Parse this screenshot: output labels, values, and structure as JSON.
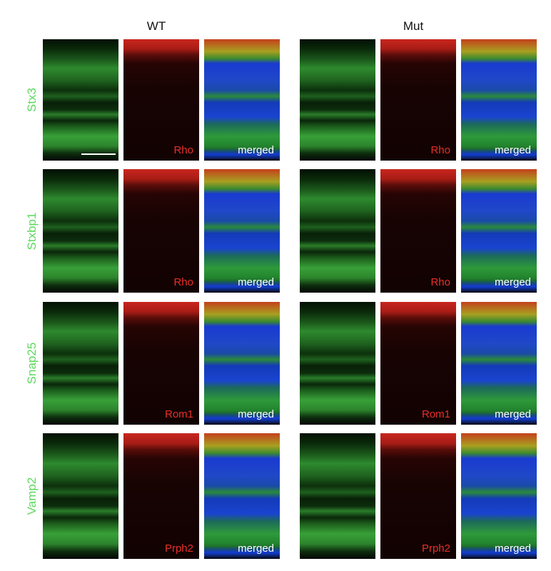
{
  "groups": [
    {
      "title": "WT"
    },
    {
      "title": "Mut"
    }
  ],
  "rows": [
    {
      "label": "Stx3",
      "red_label": "Rho",
      "merged_label": "merged"
    },
    {
      "label": "Stxbp1",
      "red_label": "Rho",
      "merged_label": "merged"
    },
    {
      "label": "Snap25",
      "red_label": "Rom1",
      "merged_label": "merged"
    },
    {
      "label": "Vamp2",
      "red_label": "Prph2",
      "merged_label": "merged"
    }
  ]
}
